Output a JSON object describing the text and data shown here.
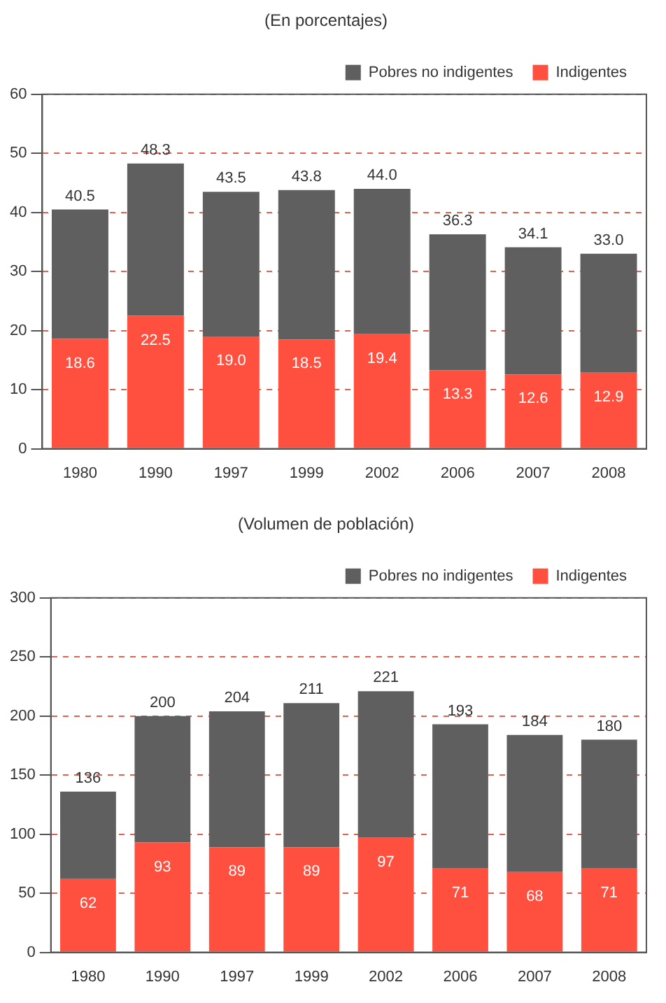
{
  "chart_data": [
    {
      "type": "bar",
      "title": "(En porcentajes)",
      "categories": [
        "1980",
        "1990",
        "1997",
        "1999",
        "2002",
        "2006",
        "2007",
        "2008"
      ],
      "stacked": true,
      "ylim": [
        0,
        60
      ],
      "yticks": [
        0,
        10,
        20,
        30,
        40,
        50,
        60
      ],
      "grid": "y",
      "legend": "top right",
      "series": [
        {
          "name": "Indigentes",
          "color": "#ff4f3f",
          "values": [
            18.6,
            22.5,
            19.0,
            18.5,
            19.4,
            13.3,
            12.6,
            12.9
          ],
          "value_labels": [
            "18.6",
            "22.5",
            "19.0",
            "18.5",
            "19.4",
            "13.3",
            "12.6",
            "12.9"
          ]
        },
        {
          "name": "Pobres no indigentes",
          "color": "#5f5f5f",
          "values": [
            21.9,
            25.8,
            24.5,
            25.3,
            24.6,
            23.0,
            21.5,
            20.1
          ]
        }
      ],
      "totals": [
        "40.5",
        "48.3",
        "43.5",
        "43.8",
        "44.0",
        "36.3",
        "34.1",
        "33.0"
      ]
    },
    {
      "type": "bar",
      "title": "(Volumen de población)",
      "categories": [
        "1980",
        "1990",
        "1997",
        "1999",
        "2002",
        "2006",
        "2007",
        "2008"
      ],
      "stacked": true,
      "ylim": [
        0,
        300
      ],
      "yticks": [
        0,
        50,
        100,
        150,
        200,
        250,
        300
      ],
      "grid": "y",
      "legend": "top right",
      "series": [
        {
          "name": "Indigentes",
          "color": "#ff4f3f",
          "values": [
            62,
            93,
            89,
            89,
            97,
            71,
            68,
            71
          ],
          "value_labels": [
            "62",
            "93",
            "89",
            "89",
            "97",
            "71",
            "68",
            "71"
          ]
        },
        {
          "name": "Pobres no indigentes",
          "color": "#5f5f5f",
          "values": [
            74,
            107,
            115,
            122,
            124,
            122,
            116,
            109
          ]
        }
      ],
      "totals": [
        "136",
        "200",
        "204",
        "211",
        "221",
        "193",
        "184",
        "180"
      ]
    }
  ]
}
